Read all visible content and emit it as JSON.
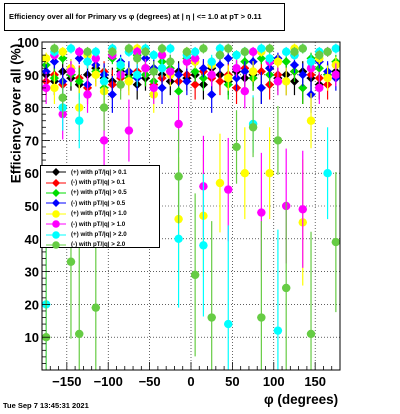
{
  "title": "Efficiency over all for Primary vs φ (degrees) at |   η | <= 1.0 at pT > 0.11",
  "timestamp": "Tue Sep  7 13:45:31 2021",
  "chart_data": {
    "type": "scatter",
    "title": "Efficiency over all for Primary vs φ (degrees) at |   η | <= 1.0 at pT > 0.11",
    "xlabel": "φ (degrees)",
    "ylabel": "Efficiency over all (%)",
    "xlim": [
      -180,
      180
    ],
    "ylim": [
      0,
      100
    ],
    "xticks": [
      -150,
      -100,
      -50,
      0,
      50,
      100,
      150
    ],
    "yticks": [
      10,
      20,
      30,
      40,
      50,
      60,
      70,
      80,
      90,
      100
    ],
    "grid": true,
    "legend_position": "left",
    "series": [
      {
        "name": "(+) with pT/|q| > 0.1",
        "color": "#000000",
        "points": [
          [
            -175,
            90
          ],
          [
            -165,
            88
          ],
          [
            -155,
            91
          ],
          [
            -145,
            89
          ],
          [
            -135,
            87
          ],
          [
            -125,
            90
          ],
          [
            -115,
            92
          ],
          [
            -105,
            89
          ],
          [
            -95,
            88
          ],
          [
            -85,
            91
          ],
          [
            -75,
            90
          ],
          [
            -65,
            87
          ],
          [
            -55,
            89
          ],
          [
            -45,
            92
          ],
          [
            -35,
            90
          ],
          [
            -25,
            88
          ],
          [
            -15,
            91
          ],
          [
            -5,
            89
          ],
          [
            5,
            90
          ],
          [
            15,
            87
          ],
          [
            25,
            92
          ],
          [
            35,
            90
          ],
          [
            45,
            88
          ],
          [
            55,
            91
          ],
          [
            65,
            89
          ],
          [
            75,
            90
          ],
          [
            85,
            86
          ],
          [
            95,
            92
          ],
          [
            105,
            89
          ],
          [
            115,
            90
          ],
          [
            125,
            88
          ],
          [
            135,
            91
          ],
          [
            145,
            89
          ],
          [
            155,
            87
          ],
          [
            165,
            90
          ],
          [
            175,
            91
          ]
        ]
      },
      {
        "name": "(-) with pT/|q| > 0.1",
        "color": "#ff0000",
        "points": [
          [
            -175,
            88
          ],
          [
            -165,
            90
          ],
          [
            -155,
            87
          ],
          [
            -145,
            91
          ],
          [
            -135,
            89
          ],
          [
            -125,
            86
          ],
          [
            -115,
            90
          ],
          [
            -105,
            91
          ],
          [
            -95,
            87
          ],
          [
            -85,
            89
          ],
          [
            -75,
            88
          ],
          [
            -65,
            91
          ],
          [
            -55,
            90
          ],
          [
            -45,
            87
          ],
          [
            -35,
            89
          ],
          [
            -25,
            91
          ],
          [
            -15,
            88
          ],
          [
            -5,
            90
          ],
          [
            5,
            87
          ],
          [
            15,
            91
          ],
          [
            25,
            89
          ],
          [
            35,
            88
          ],
          [
            45,
            90
          ],
          [
            55,
            86
          ],
          [
            65,
            92
          ],
          [
            75,
            89
          ],
          [
            85,
            91
          ],
          [
            95,
            87
          ],
          [
            105,
            90
          ],
          [
            115,
            88
          ],
          [
            125,
            91
          ],
          [
            135,
            86
          ],
          [
            145,
            90
          ],
          [
            155,
            89
          ],
          [
            165,
            87
          ],
          [
            175,
            90
          ]
        ]
      },
      {
        "name": "(+) with pT/|q| > 0.5",
        "color": "#00dd00",
        "points": [
          [
            -175,
            93
          ],
          [
            -165,
            89
          ],
          [
            -155,
            95
          ],
          [
            -145,
            90
          ],
          [
            -135,
            88
          ],
          [
            -125,
            94
          ],
          [
            -115,
            91
          ],
          [
            -105,
            86
          ],
          [
            -95,
            95
          ],
          [
            -85,
            92
          ],
          [
            -75,
            89
          ],
          [
            -65,
            96
          ],
          [
            -55,
            90
          ],
          [
            -45,
            88
          ],
          [
            -35,
            94
          ],
          [
            -25,
            92
          ],
          [
            -15,
            85
          ],
          [
            -5,
            95
          ],
          [
            5,
            91
          ],
          [
            15,
            89
          ],
          [
            25,
            93
          ],
          [
            35,
            96
          ],
          [
            45,
            87
          ],
          [
            55,
            92
          ],
          [
            65,
            94
          ],
          [
            75,
            89
          ],
          [
            85,
            95
          ],
          [
            95,
            90
          ],
          [
            105,
            88
          ],
          [
            115,
            94
          ],
          [
            125,
            91
          ],
          [
            135,
            86
          ],
          [
            145,
            95
          ],
          [
            155,
            92
          ],
          [
            165,
            90
          ],
          [
            175,
            94
          ]
        ]
      },
      {
        "name": "(-) with pT/|q| > 0.5",
        "color": "#0000ff",
        "points": [
          [
            -175,
            91
          ],
          [
            -165,
            94
          ],
          [
            -155,
            88
          ],
          [
            -145,
            92
          ],
          [
            -135,
            95
          ],
          [
            -125,
            87
          ],
          [
            -115,
            93
          ],
          [
            -105,
            90
          ],
          [
            -95,
            84
          ],
          [
            -85,
            94
          ],
          [
            -75,
            91
          ],
          [
            -65,
            89
          ],
          [
            -55,
            95
          ],
          [
            -45,
            92
          ],
          [
            -35,
            86
          ],
          [
            -25,
            94
          ],
          [
            -15,
            90
          ],
          [
            -5,
            88
          ],
          [
            5,
            95
          ],
          [
            15,
            92
          ],
          [
            25,
            84
          ],
          [
            35,
            93
          ],
          [
            45,
            95
          ],
          [
            55,
            89
          ],
          [
            65,
            91
          ],
          [
            75,
            94
          ],
          [
            85,
            86
          ],
          [
            95,
            92
          ],
          [
            105,
            95
          ],
          [
            115,
            88
          ],
          [
            125,
            93
          ],
          [
            135,
            90
          ],
          [
            145,
            84
          ],
          [
            155,
            94
          ],
          [
            165,
            91
          ],
          [
            175,
            89
          ]
        ]
      },
      {
        "name": "(+) with pT/|q| > 1.0",
        "color": "#ffff00",
        "points": [
          [
            -175,
            95
          ],
          [
            -165,
            86
          ],
          [
            -155,
            97
          ],
          [
            -145,
            92
          ],
          [
            -135,
            80
          ],
          [
            -125,
            96
          ],
          [
            -115,
            90
          ],
          [
            -105,
            85
          ],
          [
            -95,
            97
          ],
          [
            -85,
            93
          ],
          [
            -75,
            88
          ],
          [
            -65,
            98
          ],
          [
            -55,
            92
          ],
          [
            -45,
            84
          ],
          [
            -35,
            96
          ],
          [
            -25,
            90
          ],
          [
            -15,
            46
          ],
          [
            -5,
            97
          ],
          [
            5,
            94
          ],
          [
            15,
            47
          ],
          [
            25,
            93
          ],
          [
            35,
            57
          ],
          [
            45,
            89
          ],
          [
            55,
            96
          ],
          [
            65,
            60
          ],
          [
            75,
            91
          ],
          [
            85,
            97
          ],
          [
            95,
            60
          ],
          [
            105,
            94
          ],
          [
            115,
            88
          ],
          [
            125,
            98
          ],
          [
            135,
            45
          ],
          [
            145,
            76
          ],
          [
            155,
            95
          ],
          [
            165,
            89
          ],
          [
            175,
            93
          ]
        ]
      },
      {
        "name": "(-) with pT/|q| > 1.0",
        "color": "#ff00ff",
        "points": [
          [
            -175,
            86
          ],
          [
            -165,
            96
          ],
          [
            -155,
            78
          ],
          [
            -145,
            91
          ],
          [
            -135,
            97
          ],
          [
            -125,
            84
          ],
          [
            -115,
            95
          ],
          [
            -105,
            70
          ],
          [
            -95,
            96
          ],
          [
            -85,
            90
          ],
          [
            -75,
            73
          ],
          [
            -65,
            97
          ],
          [
            -55,
            92
          ],
          [
            -45,
            86
          ],
          [
            -35,
            96
          ],
          [
            -25,
            91
          ],
          [
            -15,
            75
          ],
          [
            -5,
            94
          ],
          [
            5,
            95
          ],
          [
            15,
            56
          ],
          [
            25,
            90
          ],
          [
            35,
            96
          ],
          [
            45,
            55
          ],
          [
            55,
            92
          ],
          [
            65,
            85
          ],
          [
            75,
            97
          ],
          [
            85,
            48
          ],
          [
            95,
            94
          ],
          [
            105,
            88
          ],
          [
            115,
            50
          ],
          [
            125,
            96
          ],
          [
            135,
            49
          ],
          [
            145,
            92
          ],
          [
            155,
            86
          ],
          [
            165,
            97
          ],
          [
            175,
            90
          ]
        ]
      },
      {
        "name": "(+) with pT/|q| > 2.0",
        "color": "#00ffff",
        "points": [
          [
            -175,
            20
          ],
          [
            -165,
            97
          ],
          [
            -155,
            80
          ],
          [
            -145,
            98
          ],
          [
            -135,
            76
          ],
          [
            -125,
            94
          ],
          [
            -115,
            97
          ],
          [
            -105,
            88
          ],
          [
            -95,
            98
          ],
          [
            -85,
            93
          ],
          [
            -75,
            97
          ],
          [
            -65,
            90
          ],
          [
            -55,
            98
          ],
          [
            -45,
            96
          ],
          [
            -35,
            92
          ],
          [
            -25,
            98
          ],
          [
            -15,
            40
          ],
          [
            -5,
            96
          ],
          [
            5,
            97
          ],
          [
            15,
            38
          ],
          [
            25,
            94
          ],
          [
            35,
            98
          ],
          [
            45,
            14
          ],
          [
            55,
            96
          ],
          [
            65,
            97
          ],
          [
            75,
            75
          ],
          [
            85,
            98
          ],
          [
            95,
            95
          ],
          [
            105,
            12
          ],
          [
            115,
            97
          ],
          [
            125,
            96
          ],
          [
            135,
            98
          ],
          [
            145,
            94
          ],
          [
            155,
            97
          ],
          [
            165,
            60
          ],
          [
            175,
            98
          ]
        ]
      },
      {
        "name": "(-) with pT/|q| > 2.0",
        "color": "#66cc44",
        "points": [
          [
            -175,
            10
          ],
          [
            -165,
            98
          ],
          [
            -155,
            83
          ],
          [
            -145,
            33
          ],
          [
            -135,
            11
          ],
          [
            -125,
            97
          ],
          [
            -115,
            19
          ],
          [
            -105,
            80
          ],
          [
            -95,
            97
          ],
          [
            -85,
            87
          ],
          [
            -75,
            98
          ],
          [
            -65,
            95
          ],
          [
            -55,
            97
          ],
          [
            -45,
            91
          ],
          [
            -35,
            98
          ],
          [
            -25,
            94
          ],
          [
            -15,
            59
          ],
          [
            -5,
            97
          ],
          [
            5,
            29
          ],
          [
            15,
            98
          ],
          [
            25,
            16
          ],
          [
            35,
            96
          ],
          [
            45,
            98
          ],
          [
            55,
            68
          ],
          [
            65,
            97
          ],
          [
            75,
            74
          ],
          [
            85,
            16
          ],
          [
            95,
            98
          ],
          [
            105,
            70
          ],
          [
            115,
            25
          ],
          [
            125,
            97
          ],
          [
            135,
            98
          ],
          [
            145,
            11
          ],
          [
            155,
            96
          ],
          [
            165,
            97
          ],
          [
            175,
            39
          ]
        ]
      }
    ]
  }
}
